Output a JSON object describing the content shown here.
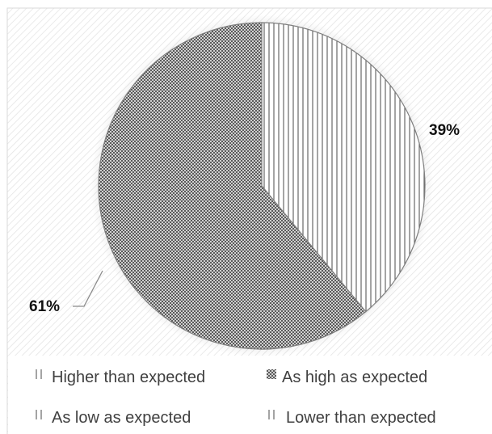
{
  "chart_data": {
    "type": "pie",
    "categories": [
      "Higher than expected",
      "As high as expected",
      "As low as expected",
      "Lower than expected"
    ],
    "values": [
      0,
      61,
      0,
      39
    ],
    "data_labels": [
      "",
      "61%",
      "",
      "39%"
    ],
    "title": "",
    "legend_position": "bottom",
    "legend": [
      {
        "label": "Higher than expected",
        "pattern": "vertical-lines-sparse"
      },
      {
        "label": "As high as expected",
        "pattern": "checkerboard"
      },
      {
        "label": "As low as expected",
        "pattern": "vertical-lines-sparse"
      },
      {
        "label": "Lower than expected",
        "pattern": "vertical-lines"
      }
    ],
    "colors": {
      "stroke": "#7f7f7f",
      "fill": "#ffffff",
      "pattern": "#595959"
    }
  }
}
